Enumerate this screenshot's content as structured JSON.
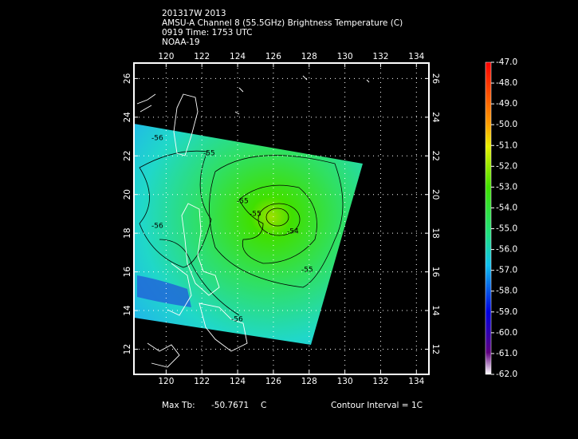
{
  "header": {
    "lines": [
      "201317W 2013",
      "AMSU-A Channel 8 (55.5GHz) Brightness Temperature (C)",
      "0919 Time: 1753 UTC",
      "NOAA-19"
    ]
  },
  "map": {
    "lonlim": [
      118.2,
      134.7
    ],
    "latlim": [
      10.7,
      26.8
    ],
    "lon_ticks": [
      120,
      122,
      124,
      126,
      128,
      130,
      132,
      134
    ],
    "lat_ticks": [
      12,
      14,
      16,
      18,
      20,
      22,
      24,
      26
    ],
    "grid": true
  },
  "contour_labels": [
    "-56",
    "-55",
    "-55",
    "-55",
    "-54",
    "-56",
    "-56",
    "-55"
  ],
  "colorbar": {
    "lim": [
      -62,
      -47
    ],
    "ticks": [
      {
        "value": -47,
        "label": "-47.0"
      },
      {
        "value": -48,
        "label": "-48.0"
      },
      {
        "value": -49,
        "label": "-49.0"
      },
      {
        "value": -50,
        "label": "-50.0"
      },
      {
        "value": -51,
        "label": "-51.0"
      },
      {
        "value": -52,
        "label": "-52.0"
      },
      {
        "value": -53,
        "label": "-53.0"
      },
      {
        "value": -54,
        "label": "-54.0"
      },
      {
        "value": -55,
        "label": "-55.0"
      },
      {
        "value": -56,
        "label": "-56.0"
      },
      {
        "value": -57,
        "label": "-57.0"
      },
      {
        "value": -58,
        "label": "-58.0"
      },
      {
        "value": -59,
        "label": "-59.0"
      },
      {
        "value": -60,
        "label": "-60.0"
      },
      {
        "value": -61,
        "label": "-61.0"
      },
      {
        "value": -62,
        "label": "-62.0"
      }
    ]
  },
  "footer": {
    "max_tb_label": "Max Tb:",
    "max_tb_value": "-50.7671",
    "max_tb_unit": "C",
    "contour_interval": "Contour Interval = 1C"
  }
}
